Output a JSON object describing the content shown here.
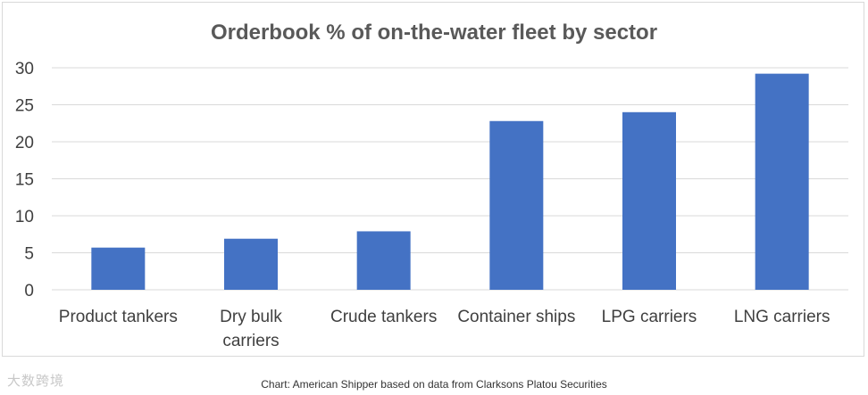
{
  "chart_data": {
    "type": "bar",
    "title": "Orderbook % of on-the-water fleet by sector",
    "categories": [
      "Product tankers",
      "Dry bulk carriers",
      "Crude tankers",
      "Container ships",
      "LPG carriers",
      "LNG carriers"
    ],
    "category_lines": [
      [
        "Product tankers"
      ],
      [
        "Dry bulk",
        "carriers"
      ],
      [
        "Crude tankers"
      ],
      [
        "Container ships"
      ],
      [
        "LPG carriers"
      ],
      [
        "LNG carriers"
      ]
    ],
    "values": [
      5.7,
      6.9,
      7.9,
      22.8,
      24.0,
      29.2
    ],
    "ylim": [
      0,
      30
    ],
    "yticks": [
      0,
      5,
      10,
      15,
      20,
      25,
      30
    ],
    "xlabel": "",
    "ylabel": "",
    "grid": true,
    "bar_color": "#4472c4",
    "grid_color": "#d9d9d9"
  },
  "caption": "Chart: American Shipper based on data from Clarksons Platou Securities",
  "watermark": "大数跨境"
}
